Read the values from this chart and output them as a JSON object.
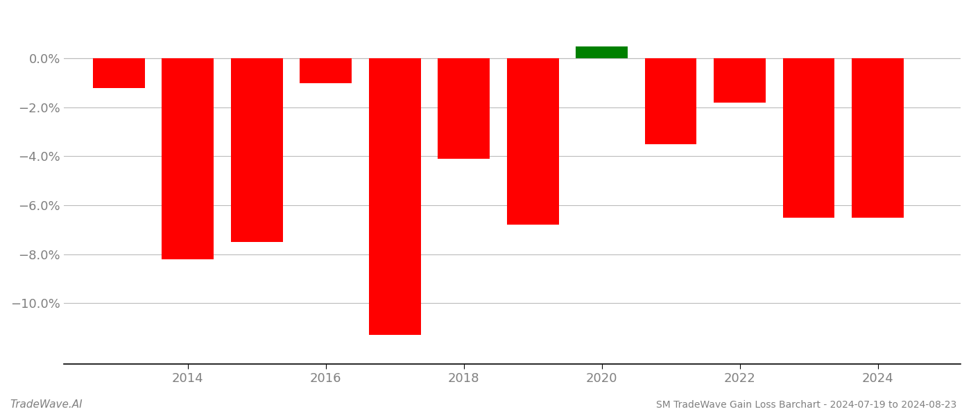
{
  "years": [
    2013,
    2014,
    2015,
    2016,
    2017,
    2018,
    2019,
    2020,
    2021,
    2022,
    2023,
    2024
  ],
  "values": [
    -0.012,
    -0.082,
    -0.075,
    -0.01,
    -0.113,
    -0.041,
    -0.068,
    0.005,
    -0.035,
    -0.018,
    -0.065,
    -0.065
  ],
  "colors": [
    "#ff0000",
    "#ff0000",
    "#ff0000",
    "#ff0000",
    "#ff0000",
    "#ff0000",
    "#ff0000",
    "#008000",
    "#ff0000",
    "#ff0000",
    "#ff0000",
    "#ff0000"
  ],
  "title": "SM TradeWave Gain Loss Barchart - 2024-07-19 to 2024-08-23",
  "watermark": "TradeWave.AI",
  "ylim": [
    -0.125,
    0.018
  ],
  "yticks": [
    0.0,
    -0.02,
    -0.04,
    -0.06,
    -0.08,
    -0.1
  ],
  "xticks": [
    2014,
    2016,
    2018,
    2020,
    2022,
    2024
  ],
  "xlim": [
    2012.2,
    2025.2
  ],
  "bar_width": 0.75,
  "background_color": "#ffffff",
  "grid_color": "#bbbbbb",
  "axis_label_color": "#808080",
  "text_color": "#808080",
  "title_fontsize": 10,
  "watermark_fontsize": 11,
  "tick_fontsize": 13
}
